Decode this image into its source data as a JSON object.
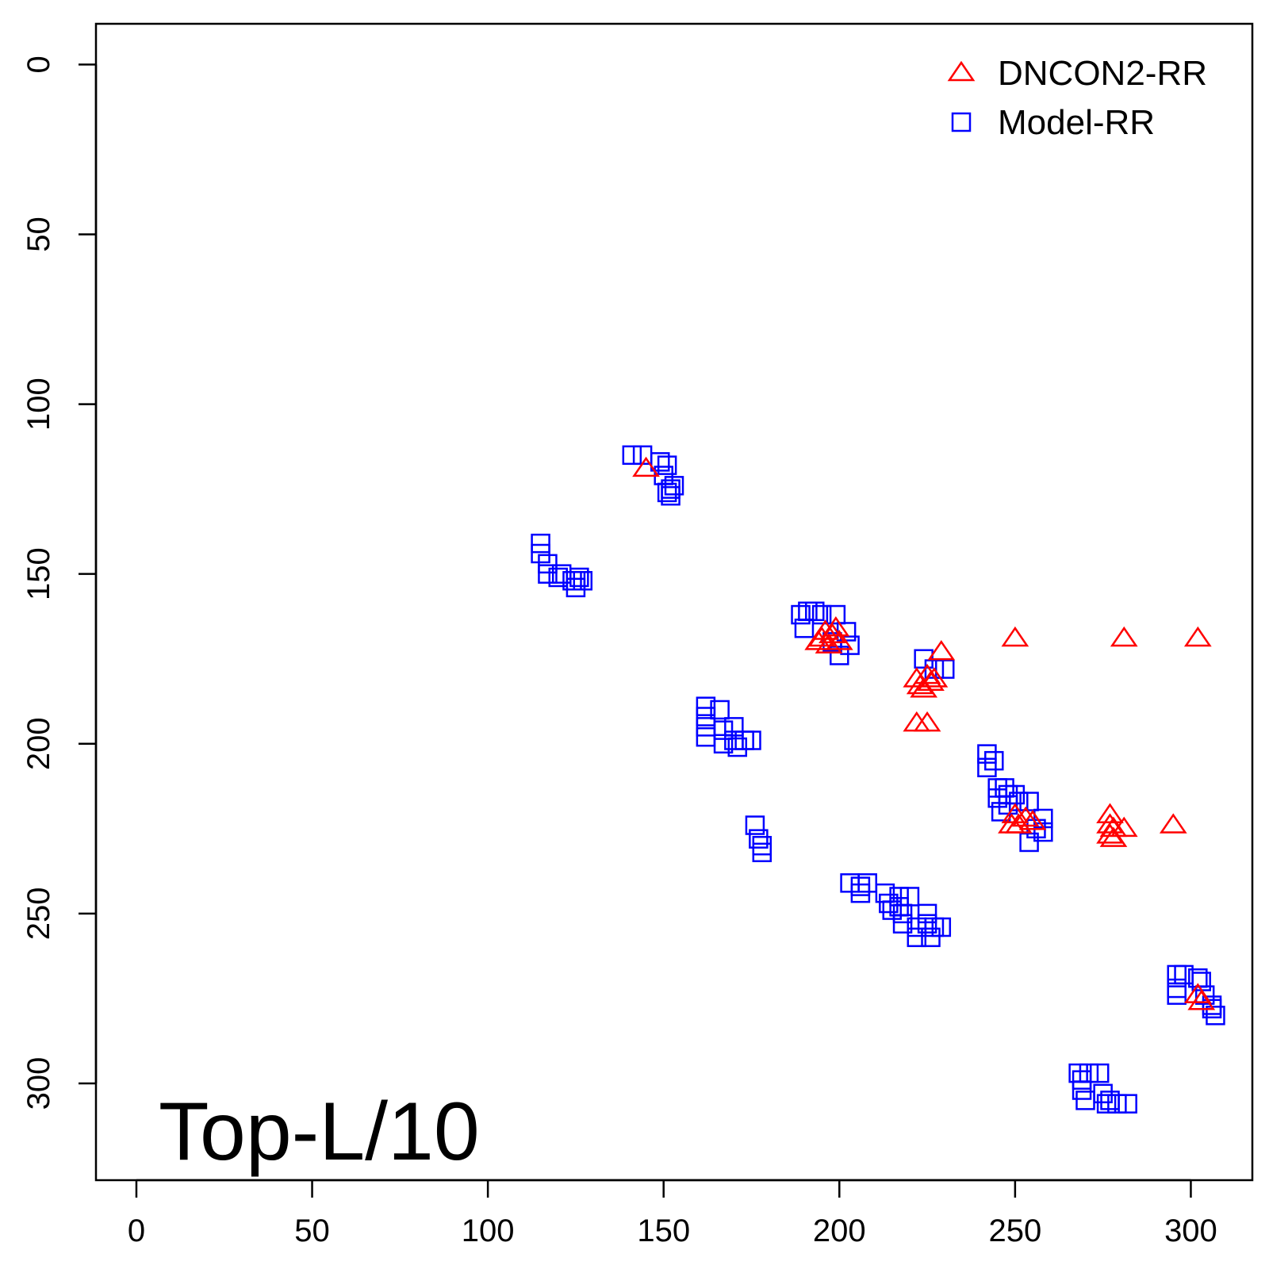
{
  "chart_data": {
    "type": "scatter",
    "title": "",
    "xlabel": "",
    "ylabel": "",
    "xlim": [
      -11.5,
      317.5
    ],
    "ylim": [
      -12,
      328.5
    ],
    "y_inverted": true,
    "grid": false,
    "legend_position": "top-right",
    "annotation": "Top-L/10",
    "x_ticks": [
      0,
      50,
      100,
      150,
      200,
      250,
      300
    ],
    "y_ticks": [
      0,
      50,
      100,
      150,
      200,
      250,
      300
    ],
    "series": [
      {
        "name": "DNCON2-RR",
        "marker": "triangle",
        "color": "#ff0000",
        "points": [
          [
            145,
            119
          ],
          [
            195,
            169
          ],
          [
            196,
            167
          ],
          [
            198,
            168
          ],
          [
            199,
            166
          ],
          [
            200,
            170
          ],
          [
            197,
            171
          ],
          [
            194,
            170
          ],
          [
            229,
            173
          ],
          [
            222,
            181
          ],
          [
            225,
            180
          ],
          [
            226,
            182
          ],
          [
            223,
            183
          ],
          [
            224,
            184
          ],
          [
            227,
            181
          ],
          [
            222,
            194
          ],
          [
            225,
            194
          ],
          [
            250,
            169
          ],
          [
            281,
            169
          ],
          [
            302,
            169
          ],
          [
            250,
            221
          ],
          [
            251,
            224
          ],
          [
            253,
            222
          ],
          [
            249,
            224
          ],
          [
            255,
            223
          ],
          [
            277,
            221
          ],
          [
            278,
            225
          ],
          [
            277,
            227
          ],
          [
            278,
            228
          ],
          [
            281,
            225
          ],
          [
            277,
            224
          ],
          [
            295,
            224
          ],
          [
            302,
            274
          ],
          [
            303,
            276
          ]
        ]
      },
      {
        "name": "Model-RR",
        "marker": "square",
        "color": "#0000ff",
        "points": [
          [
            141,
            115
          ],
          [
            144,
            115
          ],
          [
            149,
            117
          ],
          [
            151,
            118
          ],
          [
            150,
            121
          ],
          [
            153,
            124
          ],
          [
            152,
            125
          ],
          [
            151,
            126
          ],
          [
            152,
            127
          ],
          [
            115,
            141
          ],
          [
            115,
            144
          ],
          [
            117,
            147
          ],
          [
            117,
            150
          ],
          [
            120,
            151
          ],
          [
            121,
            150
          ],
          [
            124,
            152
          ],
          [
            125,
            152
          ],
          [
            126,
            151
          ],
          [
            127,
            152
          ],
          [
            125,
            154
          ],
          [
            189,
            162
          ],
          [
            191,
            161
          ],
          [
            193,
            161
          ],
          [
            195,
            162
          ],
          [
            190,
            166
          ],
          [
            199,
            162
          ],
          [
            202,
            167
          ],
          [
            203,
            171
          ],
          [
            200,
            174
          ],
          [
            198,
            170
          ],
          [
            224,
            175
          ],
          [
            227,
            178
          ],
          [
            230,
            178
          ],
          [
            162,
            189
          ],
          [
            162,
            192
          ],
          [
            162,
            195
          ],
          [
            162,
            198
          ],
          [
            166,
            190
          ],
          [
            167,
            196
          ],
          [
            167,
            200
          ],
          [
            170,
            195
          ],
          [
            170,
            199
          ],
          [
            171,
            201
          ],
          [
            173,
            199
          ],
          [
            175,
            199
          ],
          [
            176,
            224
          ],
          [
            177,
            228
          ],
          [
            178,
            230
          ],
          [
            178,
            232
          ],
          [
            242,
            203
          ],
          [
            242,
            207
          ],
          [
            244,
            205
          ],
          [
            245,
            213
          ],
          [
            245,
            216
          ],
          [
            246,
            220
          ],
          [
            247,
            213
          ],
          [
            248,
            215
          ],
          [
            248,
            218
          ],
          [
            250,
            215
          ],
          [
            251,
            217
          ],
          [
            254,
            217
          ],
          [
            256,
            225
          ],
          [
            258,
            222
          ],
          [
            258,
            226
          ],
          [
            254,
            229
          ],
          [
            203,
            241
          ],
          [
            206,
            242
          ],
          [
            206,
            244
          ],
          [
            208,
            241
          ],
          [
            213,
            244
          ],
          [
            214,
            247
          ],
          [
            215,
            249
          ],
          [
            217,
            245
          ],
          [
            217,
            248
          ],
          [
            218,
            250
          ],
          [
            220,
            245
          ],
          [
            218,
            253
          ],
          [
            222,
            254
          ],
          [
            222,
            257
          ],
          [
            225,
            250
          ],
          [
            225,
            253
          ],
          [
            226,
            257
          ],
          [
            227,
            254
          ],
          [
            229,
            254
          ],
          [
            296,
            268
          ],
          [
            298,
            268
          ],
          [
            302,
            269
          ],
          [
            303,
            270
          ],
          [
            304,
            274
          ],
          [
            296,
            272
          ],
          [
            296,
            274
          ],
          [
            306,
            278
          ],
          [
            307,
            280
          ],
          [
            306,
            277
          ],
          [
            268,
            297
          ],
          [
            269,
            299
          ],
          [
            269,
            302
          ],
          [
            271,
            297
          ],
          [
            270,
            305
          ],
          [
            274,
            297
          ],
          [
            275,
            303
          ],
          [
            276,
            306
          ],
          [
            277,
            305
          ],
          [
            279,
            306
          ],
          [
            282,
            306
          ]
        ]
      }
    ]
  }
}
